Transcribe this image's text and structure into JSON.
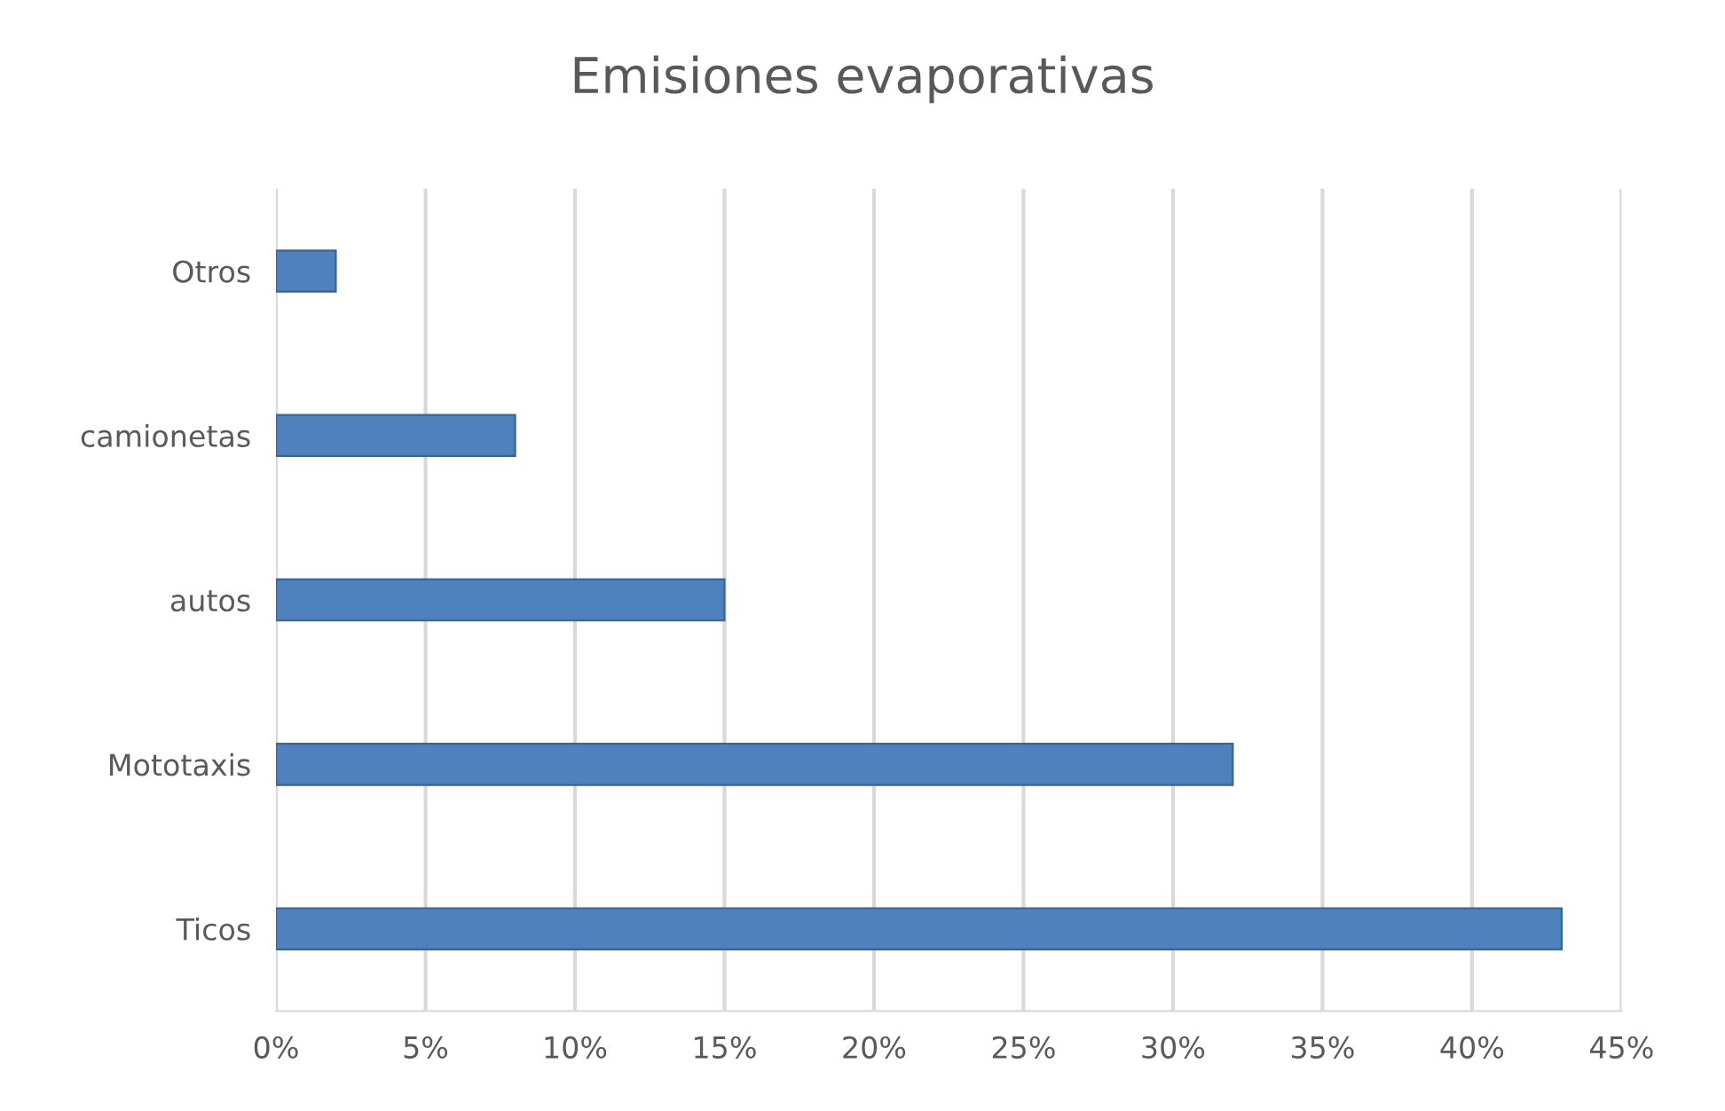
{
  "chart_data": {
    "type": "bar",
    "orientation": "horizontal",
    "title": "Emisiones evaporativas",
    "categories": [
      "Otros",
      "camionetas",
      "autos",
      "Mototaxis",
      "Ticos"
    ],
    "values": [
      2,
      8,
      15,
      32,
      43
    ],
    "color": "#4f81bd",
    "xlim": [
      0,
      45
    ],
    "xticks": [
      {
        "value": 0,
        "label": "0%"
      },
      {
        "value": 5,
        "label": "5%"
      },
      {
        "value": 10,
        "label": "10%"
      },
      {
        "value": 15,
        "label": "15%"
      },
      {
        "value": 20,
        "label": "20%"
      },
      {
        "value": 25,
        "label": "25%"
      },
      {
        "value": 30,
        "label": "30%"
      },
      {
        "value": 35,
        "label": "35%"
      },
      {
        "value": 40,
        "label": "40%"
      },
      {
        "value": 45,
        "label": "45%"
      }
    ],
    "grid": "x",
    "legend": false
  }
}
